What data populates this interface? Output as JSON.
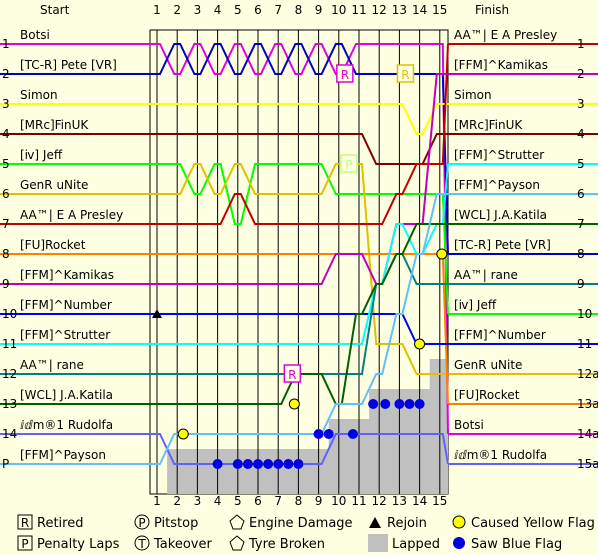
{
  "chart_data": {
    "type": "line",
    "title": "",
    "header_left": "Start",
    "header_right": "Finish",
    "laps": [
      "1",
      "2",
      "3",
      "4",
      "5",
      "6",
      "7",
      "8",
      "9",
      "10",
      "11",
      "12",
      "13",
      "14",
      "15"
    ],
    "start_position_labels": [
      "1",
      "2",
      "3",
      "4",
      "5",
      "6",
      "7",
      "8",
      "9",
      "10",
      "11",
      "12",
      "13",
      "14",
      "P"
    ],
    "start_drivers": [
      "Botsi",
      "[TC-R] Pete [VR]",
      "Simon",
      "[MRc]FinUK",
      "[ⅳ] Jeff",
      "GenR uNite",
      "AA™| E A Presley",
      "[FU]Rocket",
      "[FFM]^Kamikas",
      "[FFM]^Number",
      "[FFM]^Strutter",
      "AA™| rane",
      "[WCL] J.A.Katila",
      "ⅈⅆm®1 Rudolfa",
      "[FFM]^Payson"
    ],
    "finish_position_labels": [
      "1",
      "2",
      "3",
      "4",
      "5",
      "6",
      "7",
      "8",
      "9",
      "10",
      "11",
      "12a",
      "13a",
      "14a",
      "15a"
    ],
    "finish_drivers": [
      "AA™| E A Presley",
      "[FFM]^Kamikas",
      "Simon",
      "[MRc]FinUK",
      "[FFM]^Strutter",
      "[FFM]^Payson",
      "[WCL] J.A.Katila",
      "[TC-R] Pete [VR]",
      "AA™| rane",
      "[ⅳ] Jeff",
      "[FFM]^Number",
      "GenR uNite",
      "[FU]Rocket",
      "Botsi",
      "ⅈⅆm®1 Rudolfa"
    ],
    "series": [
      {
        "name": "Botsi",
        "color": "#e000e0",
        "positions": [
          1,
          2,
          1,
          2,
          1,
          2,
          1,
          2,
          1,
          2,
          1,
          1,
          1,
          1,
          1,
          14
        ]
      },
      {
        "name": "[TC-R] Pete [VR]",
        "color": "#0000c0",
        "positions": [
          2,
          1,
          2,
          1,
          2,
          1,
          2,
          1,
          2,
          1,
          2,
          2,
          2,
          2,
          2,
          8
        ]
      },
      {
        "name": "Simon",
        "color": "#ffff00",
        "positions": [
          3,
          3,
          3,
          3,
          3,
          3,
          3,
          3,
          3,
          3,
          3,
          3,
          3,
          4,
          3,
          3
        ]
      },
      {
        "name": "[MRc]FinUK",
        "color": "#800000",
        "positions": [
          4,
          4,
          4,
          4,
          4,
          4,
          4,
          4,
          4,
          4,
          4,
          5,
          5,
          5,
          4,
          4
        ]
      },
      {
        "name": "[ⅳ] Jeff",
        "color": "#00ff00",
        "positions": [
          5,
          5,
          6,
          5,
          7,
          5,
          5,
          5,
          5,
          6,
          6,
          6,
          6,
          6,
          6,
          10
        ]
      },
      {
        "name": "GenR uNite",
        "color": "#e0c000",
        "positions": [
          6,
          6,
          5,
          6,
          5,
          6,
          6,
          6,
          6,
          5,
          5,
          11,
          11,
          12,
          12,
          12
        ]
      },
      {
        "name": "AA™| E A Presley",
        "color": "#c00000",
        "positions": [
          7,
          7,
          7,
          7,
          6,
          7,
          7,
          7,
          7,
          7,
          7,
          7,
          6,
          5,
          5,
          1
        ]
      },
      {
        "name": "[FU]Rocket",
        "color": "#ff8000",
        "positions": [
          8,
          8,
          8,
          8,
          8,
          8,
          8,
          8,
          8,
          8,
          8,
          8,
          8,
          8,
          8,
          13
        ]
      },
      {
        "name": "[FFM]^Kamikas",
        "color": "#c000c0",
        "positions": [
          9,
          9,
          9,
          9,
          9,
          9,
          9,
          9,
          9,
          8,
          8,
          9,
          7,
          7,
          2,
          2
        ]
      },
      {
        "name": "[FFM]^Number",
        "color": "#0000ff",
        "positions": [
          10,
          10,
          10,
          10,
          10,
          10,
          10,
          10,
          10,
          10,
          10,
          10,
          10,
          11,
          11,
          11
        ]
      },
      {
        "name": "[FFM]^Strutter",
        "color": "#00ffff",
        "positions": [
          11,
          11,
          11,
          11,
          11,
          11,
          11,
          11,
          11,
          11,
          11,
          9,
          7,
          8,
          7,
          5
        ]
      },
      {
        "name": "AA™| rane",
        "color": "#008080",
        "positions": [
          12,
          12,
          12,
          12,
          12,
          12,
          12,
          12,
          12,
          12,
          12,
          9,
          8,
          9,
          9,
          9
        ]
      },
      {
        "name": "[WCL] J.A.Katila",
        "color": "#006000",
        "positions": [
          13,
          13,
          13,
          13,
          13,
          13,
          13,
          12,
          12,
          13,
          10,
          9,
          8,
          7,
          7,
          7
        ]
      },
      {
        "name": "ⅈⅆm®1 Rudolfa",
        "color": "#6060ff",
        "positions": [
          14,
          15,
          15,
          15,
          15,
          15,
          15,
          15,
          15,
          14,
          14,
          14,
          14,
          14,
          14,
          15
        ]
      },
      {
        "name": "[FFM]^Payson",
        "color": "#60c0ff",
        "positions": [
          15,
          14,
          14,
          14,
          14,
          14,
          14,
          14,
          14,
          13,
          13,
          12,
          10,
          8,
          6,
          6
        ]
      }
    ],
    "lapped_counts": [
      0,
      1,
      1,
      1,
      1,
      1,
      1,
      1,
      1,
      2,
      2,
      3,
      3,
      3,
      4,
      4
    ],
    "annotations": [
      {
        "type": "retired",
        "symbol": "R",
        "lap": 7.7,
        "position": 12,
        "color": "#e000e0"
      },
      {
        "type": "retired",
        "symbol": "R",
        "lap": 10.3,
        "position": 2,
        "color": "#e000e0"
      },
      {
        "type": "retired",
        "symbol": "R",
        "lap": 13.3,
        "position": 2,
        "color": "#e0c000"
      },
      {
        "type": "pitstop",
        "symbol": "P",
        "lap": 10.5,
        "position": 5,
        "color": "#c0ff80"
      },
      {
        "type": "yellow_flag",
        "lap": 2.3,
        "position": 14
      },
      {
        "type": "yellow_flag",
        "lap": 7.8,
        "position": 13
      },
      {
        "type": "yellow_flag",
        "lap": 14,
        "position": 11
      },
      {
        "type": "yellow_flag",
        "lap": 15.1,
        "position": 8
      },
      {
        "type": "rejoin",
        "lap": 1,
        "position": 10
      }
    ],
    "blue_flags": [
      {
        "lap": 4,
        "position": 15
      },
      {
        "lap": 5,
        "position": 15
      },
      {
        "lap": 5.5,
        "position": 15
      },
      {
        "lap": 6,
        "position": 15
      },
      {
        "lap": 6.5,
        "position": 15
      },
      {
        "lap": 7,
        "position": 15
      },
      {
        "lap": 7.5,
        "position": 15
      },
      {
        "lap": 8,
        "position": 15
      },
      {
        "lap": 9,
        "position": 14
      },
      {
        "lap": 9.5,
        "position": 14
      },
      {
        "lap": 10.7,
        "position": 14
      },
      {
        "lap": 11.7,
        "position": 13
      },
      {
        "lap": 12.3,
        "position": 13
      },
      {
        "lap": 13,
        "position": 13
      },
      {
        "lap": 13.5,
        "position": 13
      },
      {
        "lap": 14,
        "position": 13
      }
    ],
    "legend": [
      {
        "symbol": "R",
        "label": "Retired"
      },
      {
        "symbol": "P",
        "label": "Pitstop"
      },
      {
        "symbol": "engine",
        "label": "Engine Damage"
      },
      {
        "symbol": "triangle",
        "label": "Rejoin"
      },
      {
        "symbol": "yellow",
        "label": "Caused Yellow Flag"
      },
      {
        "symbol": "P",
        "label": "Penalty Laps"
      },
      {
        "symbol": "T",
        "label": "Takeover"
      },
      {
        "symbol": "tyre",
        "label": "Tyre Broken"
      },
      {
        "symbol": "lapped",
        "label": "Lapped"
      },
      {
        "symbol": "blue",
        "label": "Saw Blue Flag"
      }
    ]
  }
}
